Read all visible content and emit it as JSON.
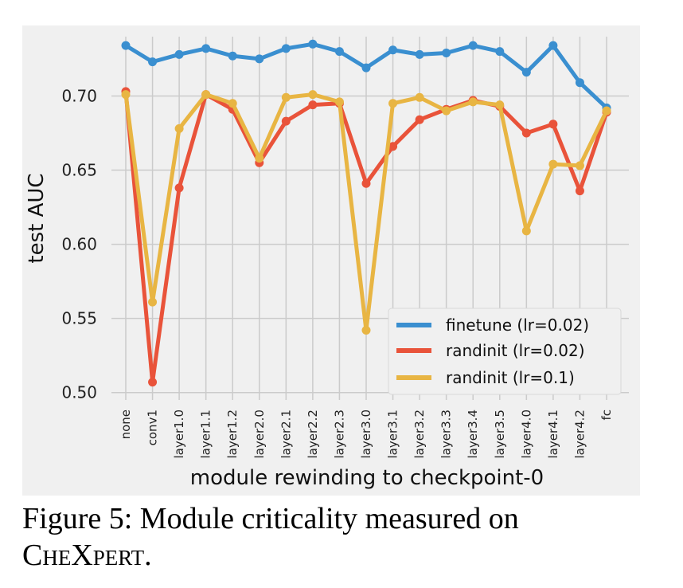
{
  "chart_data": {
    "type": "line",
    "xlabel": "module rewinding to checkpoint-0",
    "ylabel": "test AUC",
    "ylim": [
      0.495,
      0.74
    ],
    "yticks": [
      "0.50",
      "0.55",
      "0.60",
      "0.65",
      "0.70"
    ],
    "grid": true,
    "legend_position": "lower-right",
    "categories": [
      "none",
      "conv1",
      "layer1.0",
      "layer1.1",
      "layer1.2",
      "layer2.0",
      "layer2.1",
      "layer2.2",
      "layer2.3",
      "layer3.0",
      "layer3.1",
      "layer3.2",
      "layer3.3",
      "layer3.4",
      "layer3.5",
      "layer4.0",
      "layer4.1",
      "layer4.2",
      "fc"
    ],
    "series": [
      {
        "name": "finetune (lr=0.02)",
        "color": "#3a8fd0",
        "values": [
          0.734,
          0.723,
          0.728,
          0.732,
          0.727,
          0.725,
          0.732,
          0.735,
          0.73,
          0.719,
          0.731,
          0.728,
          0.729,
          0.734,
          0.73,
          0.716,
          0.734,
          0.709,
          0.692
        ]
      },
      {
        "name": "randinit (lr=0.02)",
        "color": "#e9533a",
        "values": [
          0.703,
          0.507,
          0.638,
          0.701,
          0.691,
          0.655,
          0.683,
          0.694,
          0.695,
          0.641,
          0.666,
          0.684,
          0.691,
          0.697,
          0.693,
          0.675,
          0.681,
          0.636,
          0.689
        ]
      },
      {
        "name": "randinit (lr=0.1)",
        "color": "#e8b543",
        "values": [
          0.701,
          0.561,
          0.678,
          0.701,
          0.695,
          0.658,
          0.699,
          0.701,
          0.696,
          0.542,
          0.695,
          0.699,
          0.69,
          0.696,
          0.694,
          0.609,
          0.654,
          0.653,
          0.69
        ]
      }
    ]
  },
  "caption": {
    "label": "Figure 5:",
    "text": "Module criticality measured on",
    "dataset_name": "CheXpert",
    "period": "."
  }
}
